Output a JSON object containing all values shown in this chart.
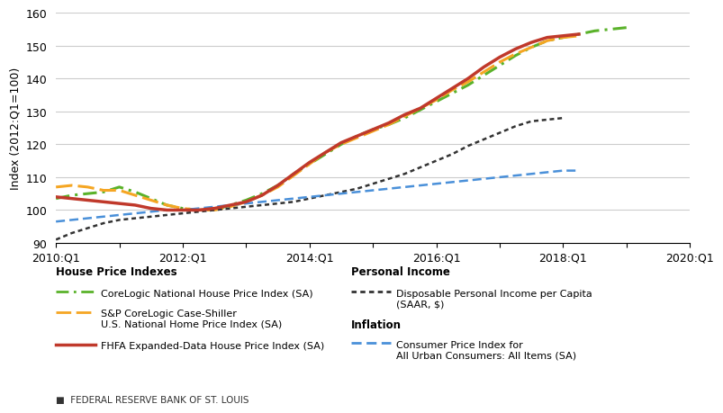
{
  "ylabel": "Index (2012:Q1=100)",
  "ylim": [
    90,
    160
  ],
  "yticks": [
    90,
    100,
    110,
    120,
    130,
    140,
    150,
    160
  ],
  "xtick_positions": [
    0,
    4,
    8,
    12,
    16,
    20,
    24,
    28,
    32,
    36,
    40
  ],
  "xtick_labels": [
    "2010:Q1",
    "",
    "2012:Q1",
    "",
    "2014:Q1",
    "",
    "2016:Q1",
    "",
    "2018:Q1",
    "",
    "2020:Q1"
  ],
  "background_color": "#ffffff",
  "grid_color": "#cccccc",
  "corelogic": [
    103.5,
    104.5,
    105.0,
    105.5,
    107.0,
    105.5,
    103.5,
    101.5,
    100.5,
    100.0,
    100.0,
    101.5,
    103.0,
    105.0,
    107.5,
    111.0,
    114.0,
    117.0,
    120.0,
    122.5,
    124.5,
    126.0,
    128.0,
    130.5,
    133.0,
    135.5,
    138.0,
    141.0,
    144.0,
    147.0,
    149.5,
    151.5,
    152.5,
    153.5,
    154.5,
    155.0,
    155.5
  ],
  "corelogic_color": "#5ab22a",
  "corelogic_lw": 2.2,
  "caseshiller": [
    107.0,
    107.5,
    107.0,
    106.0,
    106.0,
    104.5,
    103.0,
    101.5,
    100.5,
    100.0,
    100.0,
    101.0,
    102.5,
    104.5,
    107.0,
    110.5,
    114.0,
    117.5,
    120.0,
    122.0,
    124.0,
    126.0,
    128.5,
    131.0,
    133.5,
    136.5,
    139.0,
    142.0,
    145.0,
    147.5,
    149.5,
    151.5,
    152.5,
    153.0
  ],
  "caseshiller_color": "#f5a623",
  "caseshiller_lw": 2.2,
  "fhfa": [
    104.0,
    103.5,
    103.0,
    102.5,
    102.0,
    101.5,
    100.5,
    100.0,
    100.0,
    100.0,
    100.5,
    101.5,
    102.5,
    104.5,
    107.5,
    111.0,
    114.5,
    117.5,
    120.5,
    122.5,
    124.5,
    126.5,
    129.0,
    131.0,
    134.0,
    137.0,
    140.0,
    143.5,
    146.5,
    149.0,
    151.0,
    152.5,
    153.0,
    153.5
  ],
  "fhfa_color": "#c0392b",
  "fhfa_lw": 2.5,
  "disposable": [
    91.0,
    93.0,
    94.5,
    96.0,
    97.0,
    97.5,
    98.0,
    98.5,
    99.0,
    99.5,
    100.0,
    100.5,
    101.0,
    101.5,
    102.0,
    102.5,
    103.5,
    104.5,
    105.5,
    106.5,
    108.0,
    109.5,
    111.0,
    113.0,
    115.0,
    117.0,
    119.5,
    121.5,
    123.5,
    125.5,
    127.0,
    127.5,
    128.0
  ],
  "disposable_color": "#333333",
  "disposable_lw": 1.8,
  "cpi": [
    96.5,
    97.0,
    97.5,
    98.0,
    98.5,
    99.0,
    99.5,
    100.0,
    100.0,
    100.5,
    101.0,
    101.5,
    102.0,
    102.5,
    103.0,
    103.5,
    104.0,
    104.5,
    105.0,
    105.5,
    106.0,
    106.5,
    107.0,
    107.5,
    108.0,
    108.5,
    109.0,
    109.5,
    110.0,
    110.5,
    111.0,
    111.5,
    112.0,
    112.0
  ],
  "cpi_color": "#4a90d9",
  "cpi_lw": 1.8,
  "footer_text": "FEDERAL RESERVE BANK OF ST. LOUIS"
}
